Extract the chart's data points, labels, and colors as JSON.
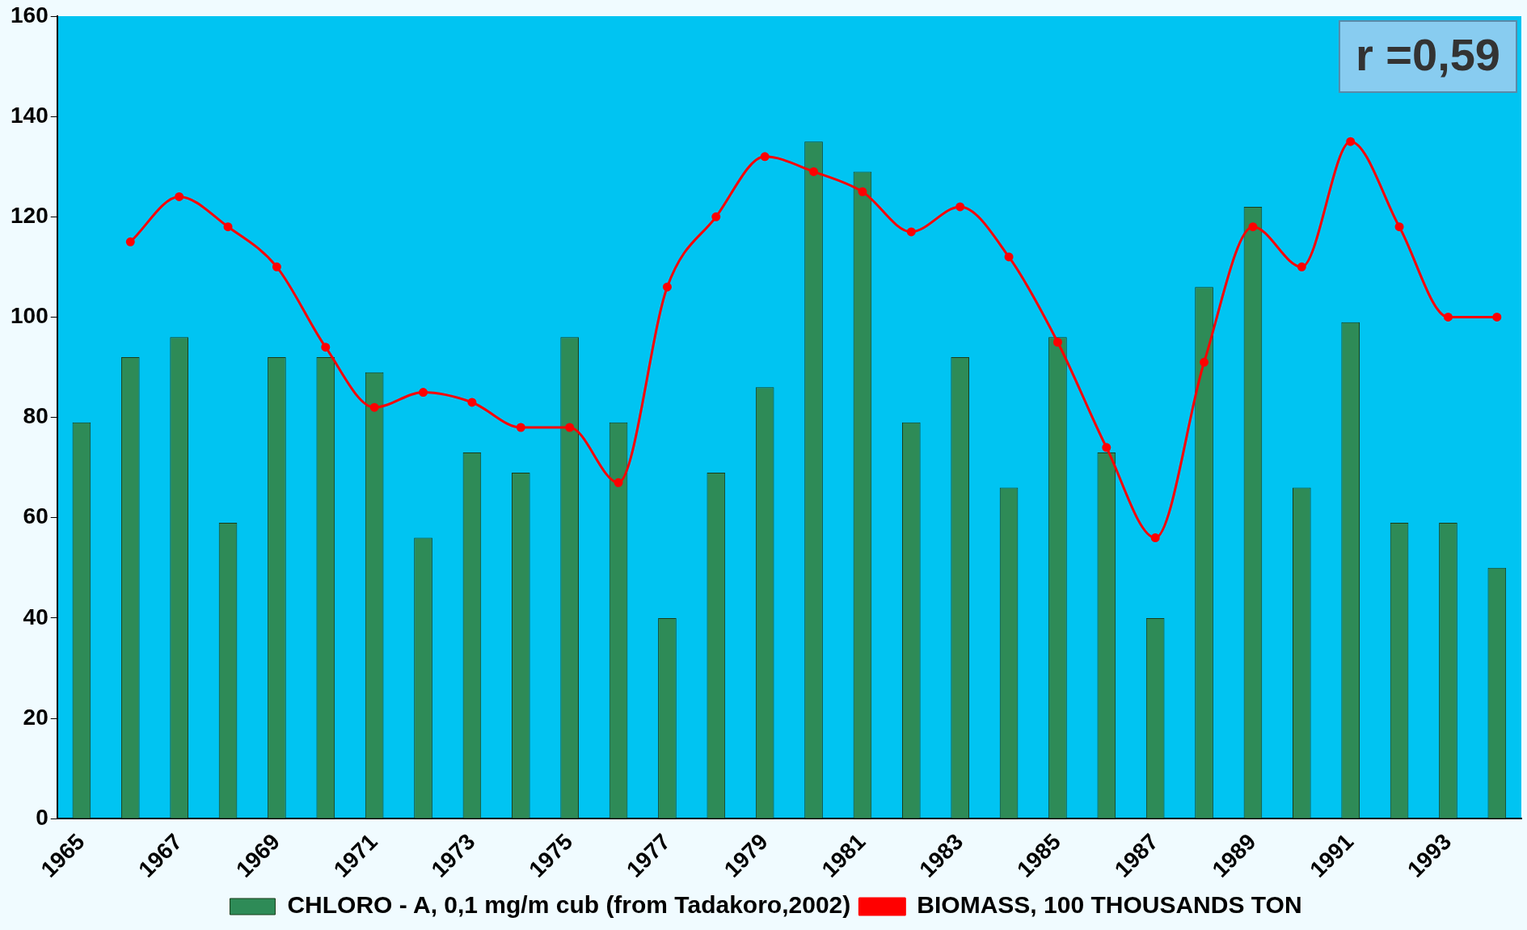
{
  "chart_data": {
    "type": "bar",
    "categories": [
      "1965",
      null,
      "1967",
      null,
      "1969",
      null,
      "1971",
      null,
      "1973",
      null,
      "1975",
      null,
      "1977",
      null,
      "1979",
      null,
      "1981",
      null,
      "1983",
      null,
      "1985",
      null,
      "1987",
      null,
      "1989",
      null,
      "1991",
      null,
      "1993",
      null
    ],
    "series": [
      {
        "name": "CHLORO - A, 0,1 mg/m cub (from Tadakoro,2002)",
        "color": "#2e8b57",
        "values": [
          79,
          92,
          96,
          59,
          92,
          92,
          89,
          56,
          73,
          69,
          96,
          79,
          40,
          69,
          86,
          135,
          129,
          79,
          92,
          66,
          96,
          73,
          40,
          106,
          122,
          66,
          99,
          59,
          59,
          50
        ]
      },
      {
        "name": "BIOMASS, 100 THOUSANDS TON",
        "type": "line",
        "color": "#ff0000",
        "values": [
          null,
          115,
          124,
          118,
          110,
          94,
          82,
          85,
          83,
          78,
          78,
          67,
          106,
          120,
          132,
          129,
          125,
          117,
          122,
          112,
          95,
          74,
          56,
          91,
          118,
          110,
          135,
          118,
          100,
          100
        ]
      }
    ],
    "ylim": [
      0,
      160
    ],
    "yticks": [
      0,
      20,
      40,
      60,
      80,
      100,
      120,
      140,
      160
    ],
    "grid": false,
    "legend": "bottom",
    "marker": "circle",
    "line_style": "solid",
    "annotations": [
      "r =0,59"
    ]
  }
}
